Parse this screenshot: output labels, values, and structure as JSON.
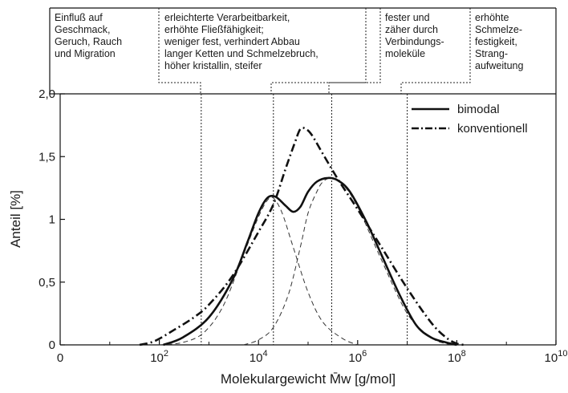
{
  "chart_data": {
    "type": "line",
    "xscale": "log10",
    "xlim": [
      1,
      10000000000
    ],
    "ylim": [
      0,
      2.0
    ],
    "xlabel": "Molekulargewicht M̄w [g/mol]",
    "ylabel": "Anteil [%]",
    "x_ticks": [
      {
        "value": 1,
        "base": "0",
        "exp": ""
      },
      {
        "value": 100,
        "base": "10",
        "exp": "2"
      },
      {
        "value": 10000,
        "base": "10",
        "exp": "4"
      },
      {
        "value": 1000000,
        "base": "10",
        "exp": "6"
      },
      {
        "value": 100000000,
        "base": "10",
        "exp": "8"
      },
      {
        "value": 10000000000,
        "base": "10",
        "exp": "10"
      }
    ],
    "y_ticks": [
      {
        "value": 0,
        "label": "0"
      },
      {
        "value": 0.5,
        "label": "0,5"
      },
      {
        "value": 1.0,
        "label": "1"
      },
      {
        "value": 1.5,
        "label": "1,5"
      },
      {
        "value": 2.0,
        "label": "2,0"
      }
    ],
    "legend_position": "top-right",
    "series": [
      {
        "name": "bimodal",
        "style": "solid",
        "points": [
          [
            120,
            0.0
          ],
          [
            300,
            0.06
          ],
          [
            1000,
            0.22
          ],
          [
            3000,
            0.52
          ],
          [
            6000,
            0.82
          ],
          [
            10000,
            1.05
          ],
          [
            15000,
            1.17
          ],
          [
            22000,
            1.18
          ],
          [
            35000,
            1.11
          ],
          [
            50000,
            1.06
          ],
          [
            70000,
            1.1
          ],
          [
            100000,
            1.22
          ],
          [
            150000,
            1.3
          ],
          [
            250000,
            1.33
          ],
          [
            400000,
            1.31
          ],
          [
            700000,
            1.22
          ],
          [
            1500000,
            0.98
          ],
          [
            3000000,
            0.72
          ],
          [
            7000000,
            0.4
          ],
          [
            15000000,
            0.16
          ],
          [
            30000000,
            0.06
          ],
          [
            60000000,
            0.02
          ],
          [
            100000000,
            0.0
          ]
        ]
      },
      {
        "name": "konventionell",
        "style": "dashdot",
        "points": [
          [
            40,
            0.0
          ],
          [
            80,
            0.03
          ],
          [
            200,
            0.12
          ],
          [
            500,
            0.22
          ],
          [
            1000,
            0.32
          ],
          [
            3000,
            0.55
          ],
          [
            10000,
            0.9
          ],
          [
            20000,
            1.12
          ],
          [
            35000,
            1.4
          ],
          [
            55000,
            1.62
          ],
          [
            70000,
            1.72
          ],
          [
            90000,
            1.72
          ],
          [
            120000,
            1.67
          ],
          [
            200000,
            1.52
          ],
          [
            400000,
            1.32
          ],
          [
            1000000,
            1.08
          ],
          [
            3000000,
            0.78
          ],
          [
            10000000,
            0.45
          ],
          [
            30000000,
            0.18
          ],
          [
            60000000,
            0.06
          ],
          [
            100000000,
            0.01
          ],
          [
            150000000,
            0.0
          ]
        ]
      },
      {
        "name": "",
        "style": "dashed-thin",
        "points": [
          [
            100,
            0.0
          ],
          [
            300,
            0.02
          ],
          [
            800,
            0.1
          ],
          [
            2000,
            0.32
          ],
          [
            5000,
            0.72
          ],
          [
            10000,
            1.02
          ],
          [
            15000,
            1.15
          ],
          [
            20000,
            1.17
          ],
          [
            30000,
            1.05
          ],
          [
            50000,
            0.78
          ],
          [
            100000,
            0.42
          ],
          [
            200000,
            0.18
          ],
          [
            500000,
            0.05
          ],
          [
            1000000,
            0.0
          ]
        ]
      },
      {
        "name": "",
        "style": "dashed-thin",
        "points": [
          [
            5000,
            0.0
          ],
          [
            10000,
            0.04
          ],
          [
            20000,
            0.14
          ],
          [
            40000,
            0.4
          ],
          [
            70000,
            0.78
          ],
          [
            100000,
            1.05
          ],
          [
            150000,
            1.22
          ],
          [
            200000,
            1.3
          ],
          [
            300000,
            1.33
          ],
          [
            500000,
            1.28
          ],
          [
            1000000,
            1.1
          ],
          [
            3000000,
            0.68
          ],
          [
            10000000,
            0.25
          ],
          [
            30000000,
            0.06
          ],
          [
            60000000,
            0.01
          ],
          [
            100000000,
            0.0
          ]
        ]
      }
    ],
    "vlines": [
      700,
      20000,
      300000,
      10000000
    ],
    "annotations": [
      [
        "Einfluß auf",
        "Geschmack,",
        "Geruch, Rauch",
        "und Migration"
      ],
      [
        "erleichterte Verarbeitbarkeit,",
        "erhöhte Fließfähigkeit;",
        "weniger fest, verhindert Abbau",
        "langer Ketten und Schmelzebruch,",
        "höher kristallin, steifer"
      ],
      [
        "fester und",
        "zäher durch",
        "Verbindungs-",
        "moleküle"
      ],
      [
        "erhöhte",
        "Schmelze-",
        "festigkeit,",
        "Strang-",
        "aufweitung"
      ]
    ]
  }
}
